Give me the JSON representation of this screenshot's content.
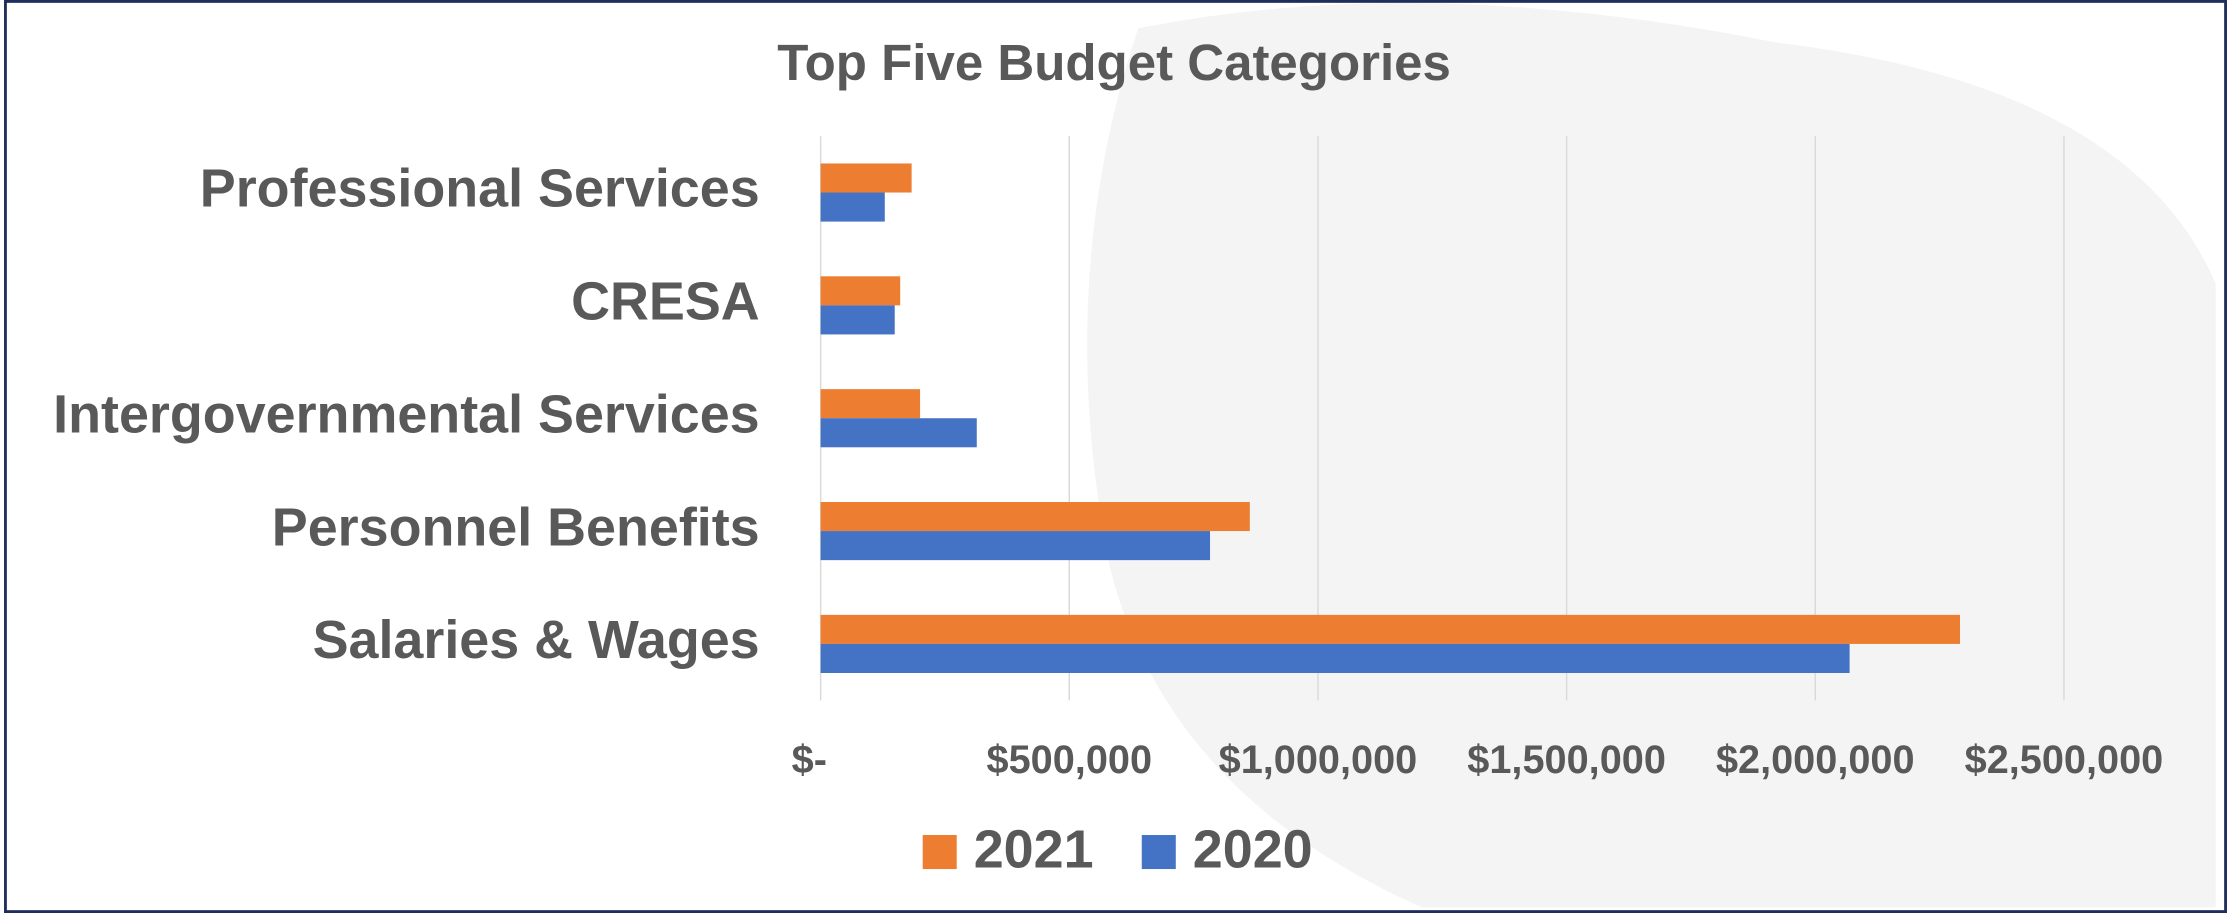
{
  "chart_data": {
    "type": "bar",
    "orientation": "horizontal",
    "title": "Top Five Budget Categories",
    "categories": [
      "Professional Services",
      "CRESA",
      "Intergovernmental Services",
      "Personnel Benefits",
      "Salaries & Wages"
    ],
    "series": [
      {
        "name": "2021",
        "color": "#ed7d31",
        "values": [
          183000,
          160000,
          200000,
          863000,
          2291000
        ]
      },
      {
        "name": "2020",
        "color": "#4472c4",
        "values": [
          129000,
          149000,
          314000,
          783000,
          2069000
        ]
      }
    ],
    "xlim": [
      0,
      2500000
    ],
    "xticks": [
      {
        "value": 0,
        "label": "$-"
      },
      {
        "value": 500000,
        "label": "$500,000"
      },
      {
        "value": 1000000,
        "label": "$1,000,000"
      },
      {
        "value": 1500000,
        "label": "$1,500,000"
      },
      {
        "value": 2000000,
        "label": "$2,000,000"
      },
      {
        "value": 2500000,
        "label": "$2,500,000"
      }
    ],
    "grid": true,
    "legend": "bottom"
  }
}
